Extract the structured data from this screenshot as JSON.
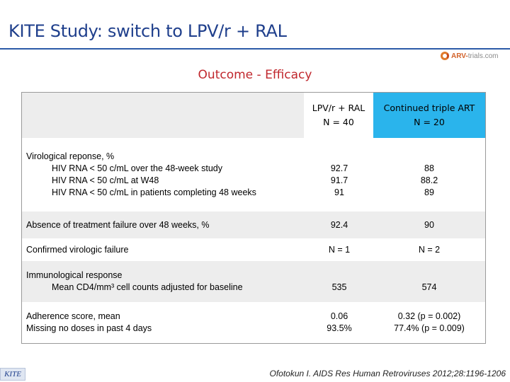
{
  "slide": {
    "title": "KITE Study: switch to LPV/r + RAL",
    "subtitle": "Outcome - Efficacy",
    "logo": {
      "brand": "ARV-",
      "suffix": "trials.com"
    }
  },
  "table": {
    "columns": [
      {
        "line1": "LPV/r + RAL",
        "line2": "N = 40"
      },
      {
        "line1": "Continued triple ART",
        "line2": "N = 20"
      }
    ],
    "rows": [
      {
        "label_lines": [
          "Virological reponse, %",
          "HIV RNA < 50 c/mL over the 48-week study",
          "HIV RNA < 50 c/mL at W48",
          "HIV RNA < 50 c/mL in patients completing 48 weeks"
        ],
        "col1": [
          "92.7",
          "91.7",
          "91"
        ],
        "col2": [
          "88",
          "88.2",
          "89"
        ]
      },
      {
        "label_lines": [
          "Absence of treatment failure over 48 weeks, %"
        ],
        "col1": [
          "92.4"
        ],
        "col2": [
          "90"
        ]
      },
      {
        "label_lines": [
          "Confirmed virologic failure"
        ],
        "col1": [
          "N = 1"
        ],
        "col2": [
          "N = 2"
        ]
      },
      {
        "label_lines": [
          "Immunological response",
          "Mean CD4/mm³ cell counts adjusted for baseline"
        ],
        "col1": [
          "535"
        ],
        "col2": [
          "574"
        ]
      },
      {
        "label_lines": [
          "Adherence score, mean",
          "Missing no doses in past 4 days"
        ],
        "col1": [
          "0.06",
          "93.5%"
        ],
        "col2": [
          "0.32 (p = 0.002)",
          "77.4% (p = 0.009)"
        ]
      }
    ]
  },
  "footer": {
    "study_tag": "KITE",
    "citation": "Ofotokun I. AIDS Res Human Retroviruses 2012;28:1196-1206"
  }
}
